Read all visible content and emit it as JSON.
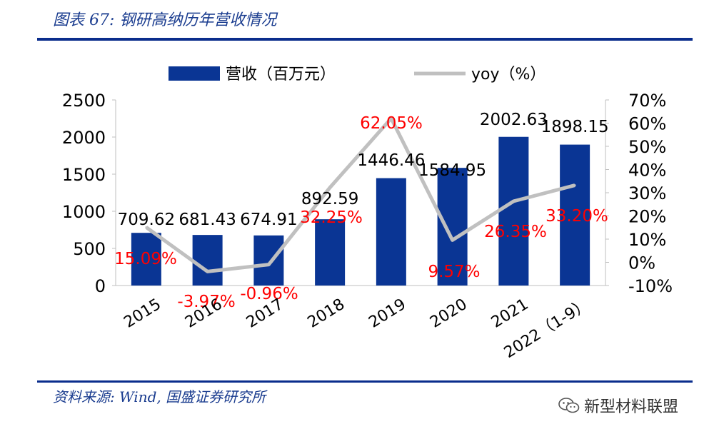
{
  "figure": {
    "title": "图表 67:  钢研高纳历年营收情况",
    "source": "资料来源:  Wind, 国盛证券研究所",
    "watermark": "新型材料联盟"
  },
  "colors": {
    "bar": "#0a3594",
    "line": "#c0c0c0",
    "label_red": "#ff0000",
    "rule": "#0a2d8c"
  },
  "chart_data": {
    "type": "bar",
    "categories": [
      "2015",
      "2016",
      "2017",
      "2018",
      "2019",
      "2020",
      "2021",
      "2022（1-9）"
    ],
    "series": [
      {
        "name": "营收 (百万元)",
        "type": "bar",
        "axis": "left",
        "values": [
          709.62,
          681.43,
          674.91,
          892.59,
          1446.46,
          1584.95,
          2002.63,
          1898.15
        ],
        "labels": [
          "709.62",
          "681.43",
          "674.91",
          "892.59",
          "1446.46",
          "1584.95",
          "2002.63",
          "1898.15"
        ]
      },
      {
        "name": "yoy (%)",
        "type": "line",
        "axis": "right",
        "values": [
          15.09,
          -3.97,
          -0.96,
          32.25,
          62.05,
          9.57,
          26.35,
          33.2
        ],
        "labels": [
          "15.09%",
          "-3.97%",
          "-0.96%",
          "32.25%",
          "62.05%",
          "9.57%",
          "26.35%",
          "33.20%"
        ]
      }
    ],
    "legend": [
      "营收（百万元）",
      "yoy（%）"
    ],
    "legend_position": "top",
    "y_left": {
      "min": 0,
      "max": 2500,
      "ticks": [
        "0",
        "500",
        "1000",
        "1500",
        "2000",
        "2500"
      ]
    },
    "y_right": {
      "min": -10,
      "max": 70,
      "ticks": [
        "-10%",
        "0%",
        "10%",
        "20%",
        "30%",
        "40%",
        "50%",
        "60%",
        "70%"
      ]
    },
    "grid": false
  }
}
